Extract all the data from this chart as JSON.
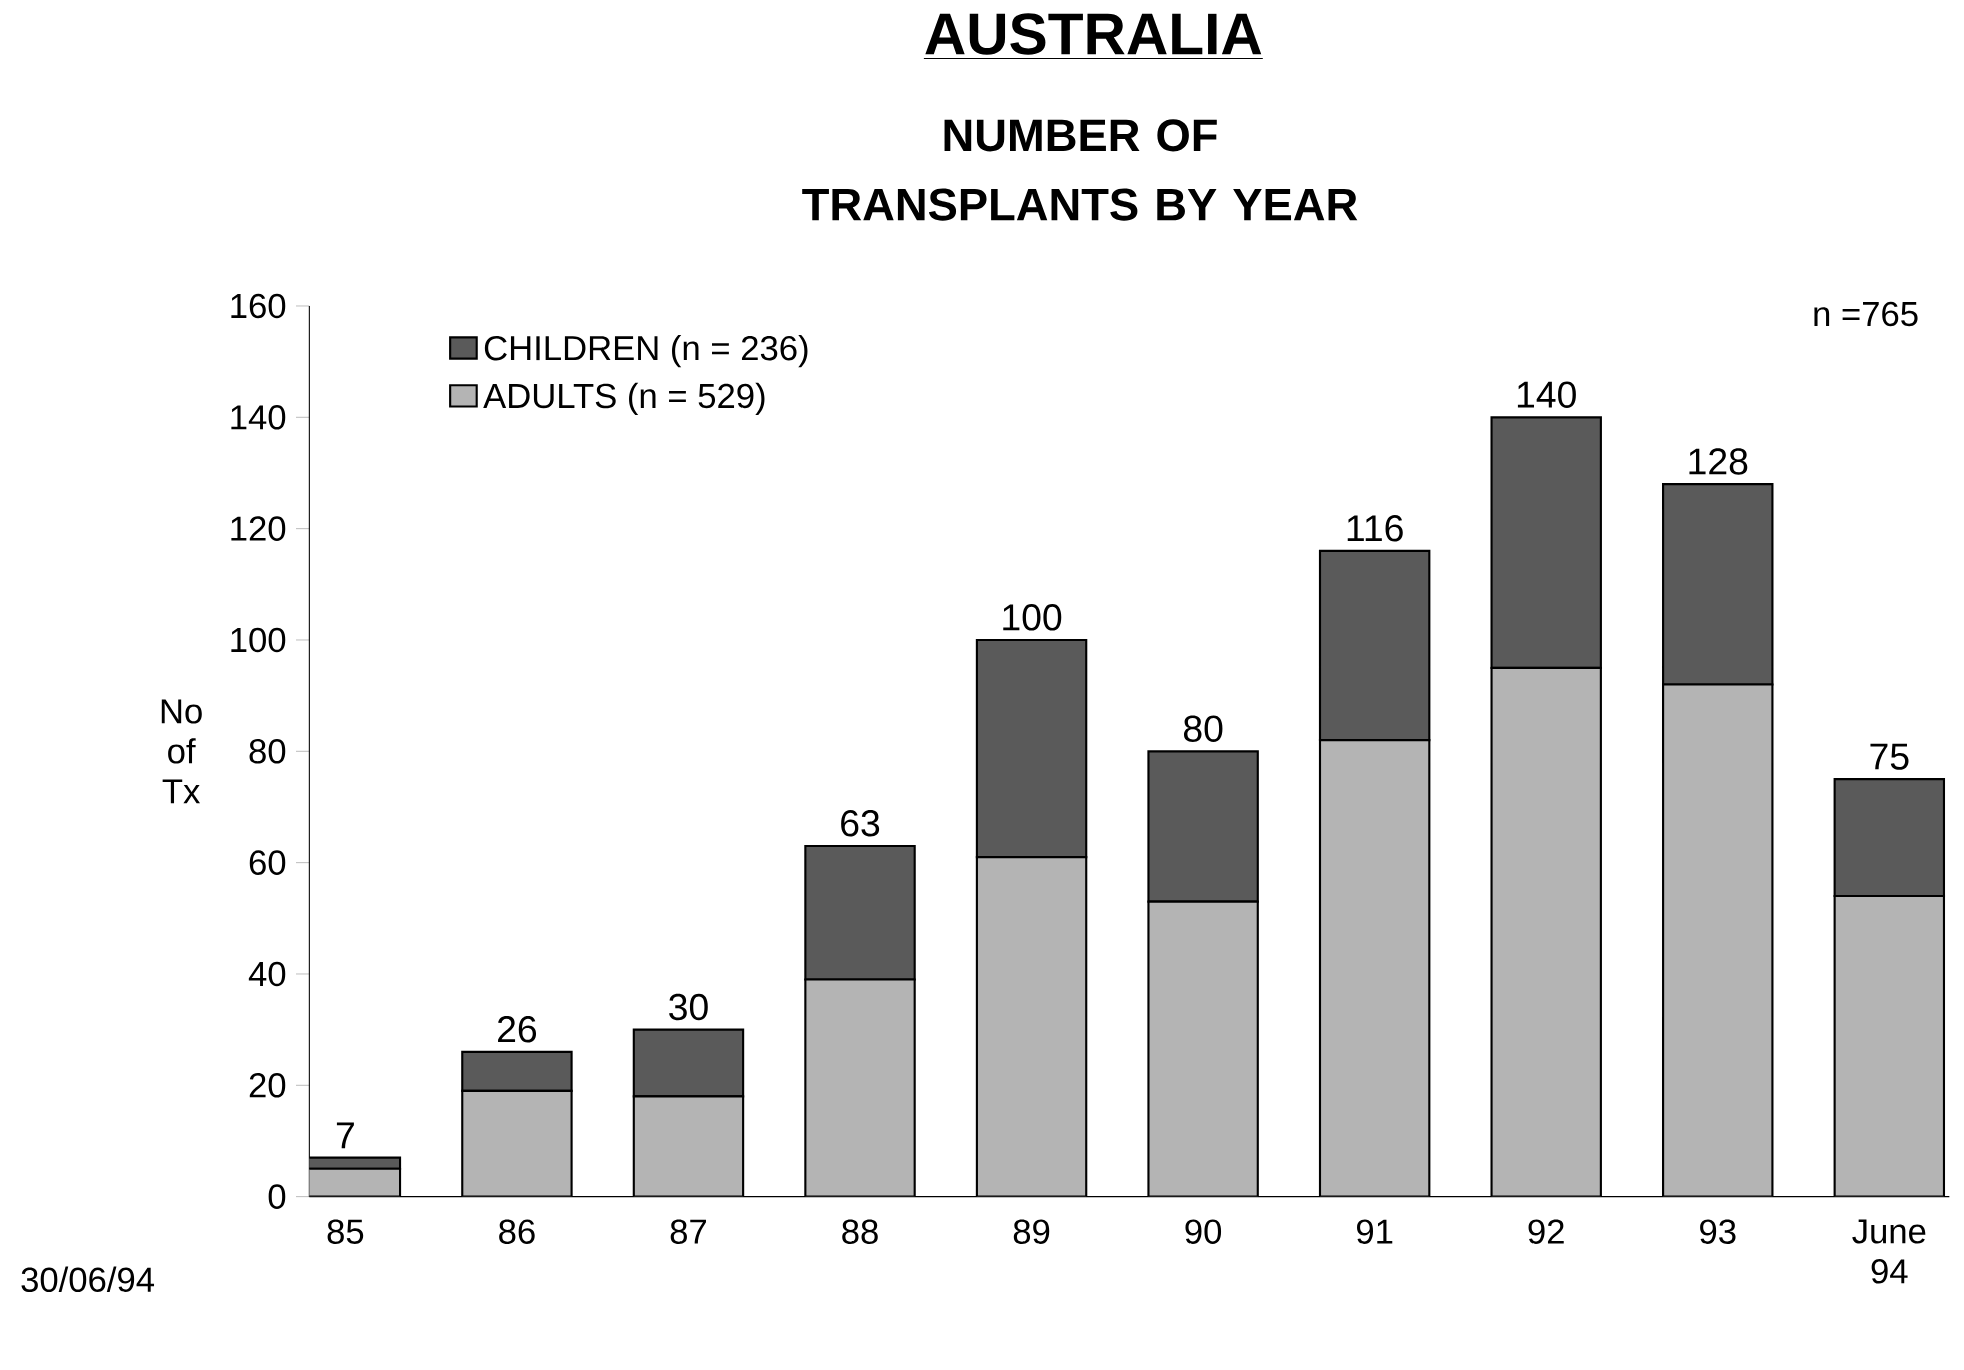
{
  "chart_data": {
    "type": "bar",
    "title": "AUSTRALIA",
    "subtitle": "NUMBER OF TRANSPLANTS BY YEAR",
    "ylabel": "No of Tx",
    "categories": [
      "85",
      "86",
      "87",
      "88",
      "89",
      "90",
      "91",
      "92",
      "93",
      "June 94"
    ],
    "series": [
      {
        "name": "ADULTS (n = 529)",
        "color": "#b4b4b4",
        "values": [
          5,
          19,
          18,
          39,
          61,
          53,
          82,
          95,
          92,
          54
        ]
      },
      {
        "name": "CHILDREN (n = 236)",
        "color": "#5a5a5a",
        "values": [
          2,
          7,
          12,
          24,
          39,
          27,
          34,
          45,
          36,
          21
        ]
      }
    ],
    "stacked": true,
    "totals": [
      "7",
      "26",
      "30",
      "63",
      "100",
      "80",
      "116",
      "140",
      "128",
      "75"
    ],
    "ylim": [
      0,
      160
    ],
    "yticks": [
      0,
      20,
      40,
      60,
      80,
      100,
      120,
      140,
      160
    ],
    "grid": false,
    "legend": "top left",
    "annotations": [
      "n =765",
      "30/06/94"
    ]
  }
}
